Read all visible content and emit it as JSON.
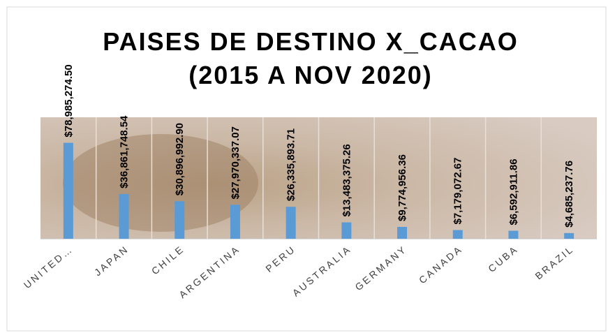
{
  "chart_data": {
    "type": "bar",
    "title": "PAISES DE DESTINO X_CACAO",
    "subtitle": "(2015 A NOV 2020)",
    "categories": [
      "UNITED…",
      "JAPAN",
      "CHILE",
      "ARGENTINA",
      "PERU",
      "AUSTRALIA",
      "GERMANY",
      "CANADA",
      "CUBA",
      "BRAZIL"
    ],
    "values": [
      78985274.5,
      36861748.54,
      30896992.9,
      27970337.07,
      26335893.71,
      13483375.26,
      9774956.36,
      7179072.67,
      6592911.86,
      4685237.76
    ],
    "value_labels": [
      "$78,985,274.50",
      "$36,861,748.54",
      "$30,896,992.90",
      "$27,970,337.07",
      "$26,335,893.71",
      "$13,483,375.26",
      "$9,774,956.36",
      "$7,179,072.67",
      "$6,592,911.86",
      "$4,685,237.76"
    ],
    "color": "#5b9bd5",
    "ylim": [
      0,
      100000000
    ]
  }
}
